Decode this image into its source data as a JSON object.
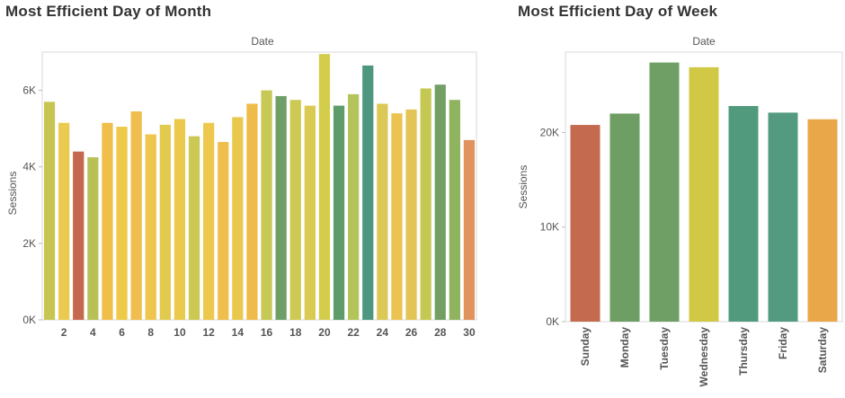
{
  "charts": {
    "month": {
      "title": "Most Efficient Day of Month",
      "xlabel": "Date",
      "ylabel": "Sessions"
    },
    "week": {
      "title": "Most Efficient Day of Week",
      "xlabel": "Date",
      "ylabel": "Sessions"
    }
  },
  "chart_data": [
    {
      "type": "bar",
      "title": "Most Efficient Day of Month",
      "xlabel": "Date",
      "ylabel": "Sessions",
      "categories": [
        1,
        2,
        3,
        4,
        5,
        6,
        7,
        8,
        9,
        10,
        11,
        12,
        13,
        14,
        15,
        16,
        17,
        18,
        19,
        20,
        21,
        22,
        23,
        24,
        25,
        26,
        27,
        28,
        29,
        30
      ],
      "x_tick_labels": [
        "2",
        "4",
        "6",
        "8",
        "10",
        "12",
        "14",
        "16",
        "18",
        "20",
        "22",
        "24",
        "26",
        "28",
        "30"
      ],
      "y_tick_labels": [
        "0K",
        "2K",
        "4K",
        "6K"
      ],
      "y_ticks": [
        0,
        2000,
        4000,
        6000
      ],
      "ylim": [
        0,
        7000
      ],
      "values": [
        5700,
        5150,
        4400,
        4250,
        5150,
        5050,
        5450,
        4850,
        5100,
        5250,
        4800,
        5150,
        4650,
        5300,
        5650,
        6000,
        5850,
        5750,
        5600,
        6950,
        5600,
        5900,
        6650,
        5650,
        5400,
        5500,
        6050,
        6150,
        5750,
        4700
      ],
      "colors": [
        "#c7c552",
        "#ebca50",
        "#c4684e",
        "#b7c157",
        "#f0be4b",
        "#eec94a",
        "#efbe4f",
        "#eec54d",
        "#e1ca4e",
        "#eac94c",
        "#cbc853",
        "#eec84d",
        "#efbe4c",
        "#e8c94d",
        "#efbb4a",
        "#c8c856",
        "#6f9e67",
        "#cdc955",
        "#dac952",
        "#d4cd4c",
        "#5f9c6c",
        "#b3c45b",
        "#4f9680",
        "#dcc855",
        "#ecc250",
        "#e2c554",
        "#c5c954",
        "#739f65",
        "#8fb35f",
        "#e0935c"
      ],
      "grid": false,
      "legend": "none"
    },
    {
      "type": "bar",
      "title": "Most Efficient Day of Week",
      "xlabel": "Date",
      "ylabel": "Sessions",
      "categories": [
        "Sunday",
        "Monday",
        "Tuesday",
        "Wednesday",
        "Thursday",
        "Friday",
        "Saturday"
      ],
      "y_tick_labels": [
        "0K",
        "10K",
        "20K"
      ],
      "y_ticks": [
        0,
        10000,
        20000
      ],
      "ylim": [
        0,
        28500
      ],
      "values": [
        20800,
        22000,
        27400,
        26900,
        22800,
        22100,
        21400
      ],
      "colors": [
        "#c46a4e",
        "#6e9e64",
        "#6f9f64",
        "#d1c845",
        "#529a7e",
        "#539a80",
        "#eaa74a"
      ],
      "grid": false,
      "legend": "none"
    }
  ]
}
